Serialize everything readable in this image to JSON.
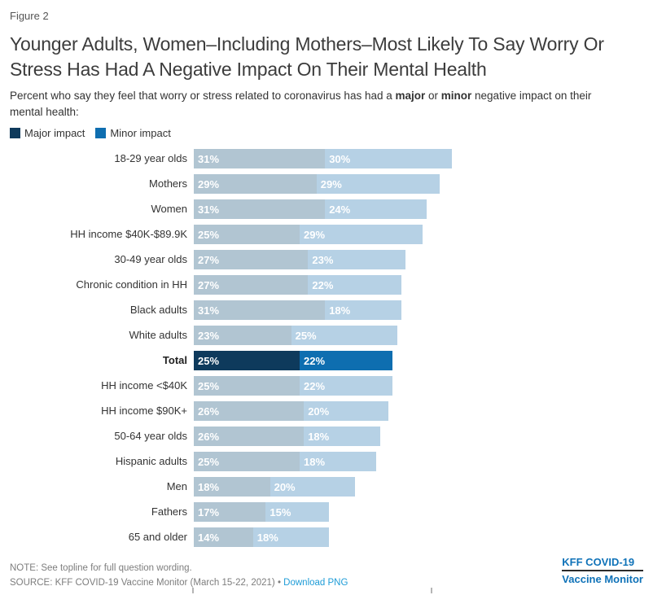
{
  "figure_label": "Figure 2",
  "title": "Younger Adults, Women–Including Mothers–Most Likely To Say Worry Or Stress Has Had A Negative Impact On Their Mental Health",
  "subtitle": {
    "prefix": "Percent who say they feel that worry or stress related to coronavirus has had a ",
    "bold1": "major",
    "mid": " or ",
    "bold2": "minor",
    "suffix": " negative impact on their mental health:"
  },
  "legend": [
    {
      "label": "Major impact",
      "color": "#0e3a5c"
    },
    {
      "label": "Minor impact",
      "color": "#0e6eb0"
    }
  ],
  "chart_data": {
    "type": "bar",
    "orientation": "horizontal",
    "stacked": true,
    "unit": "%",
    "categories": [
      "18-29 year olds",
      "Mothers",
      "Women",
      "HH income $40K-$89.9K",
      "30-49 year olds",
      "Chronic condition in HH",
      "Black adults",
      "White adults",
      "Total",
      "HH income <$40K",
      "HH income $90K+",
      "50-64 year olds",
      "Hispanic adults",
      "Men",
      "Fathers",
      "65 and older"
    ],
    "series": [
      {
        "name": "Major impact",
        "values": [
          31,
          29,
          31,
          25,
          27,
          27,
          31,
          23,
          25,
          25,
          26,
          26,
          25,
          18,
          17,
          14
        ]
      },
      {
        "name": "Minor impact",
        "values": [
          30,
          29,
          24,
          29,
          23,
          22,
          18,
          25,
          22,
          22,
          20,
          18,
          18,
          20,
          15,
          18
        ]
      }
    ],
    "highlight_category": "Total",
    "colors": {
      "major_highlight": "#0e3a5c",
      "minor_highlight": "#0e6eb0",
      "major_muted": "#b1c5d2",
      "minor_muted": "#b6d1e5"
    },
    "xlim": [
      0,
      65
    ],
    "value_label_format": "{v}%",
    "legend_position": "top-left",
    "grid": false
  },
  "footer": {
    "note": "NOTE: See topline for full question wording.",
    "source": "SOURCE: KFF COVID-19 Vaccine Monitor (March 15-22, 2021)",
    "separator": "•",
    "download_label": "Download PNG",
    "logo_line1": "KFF COVID-19",
    "logo_line2": "Vaccine Monitor"
  }
}
